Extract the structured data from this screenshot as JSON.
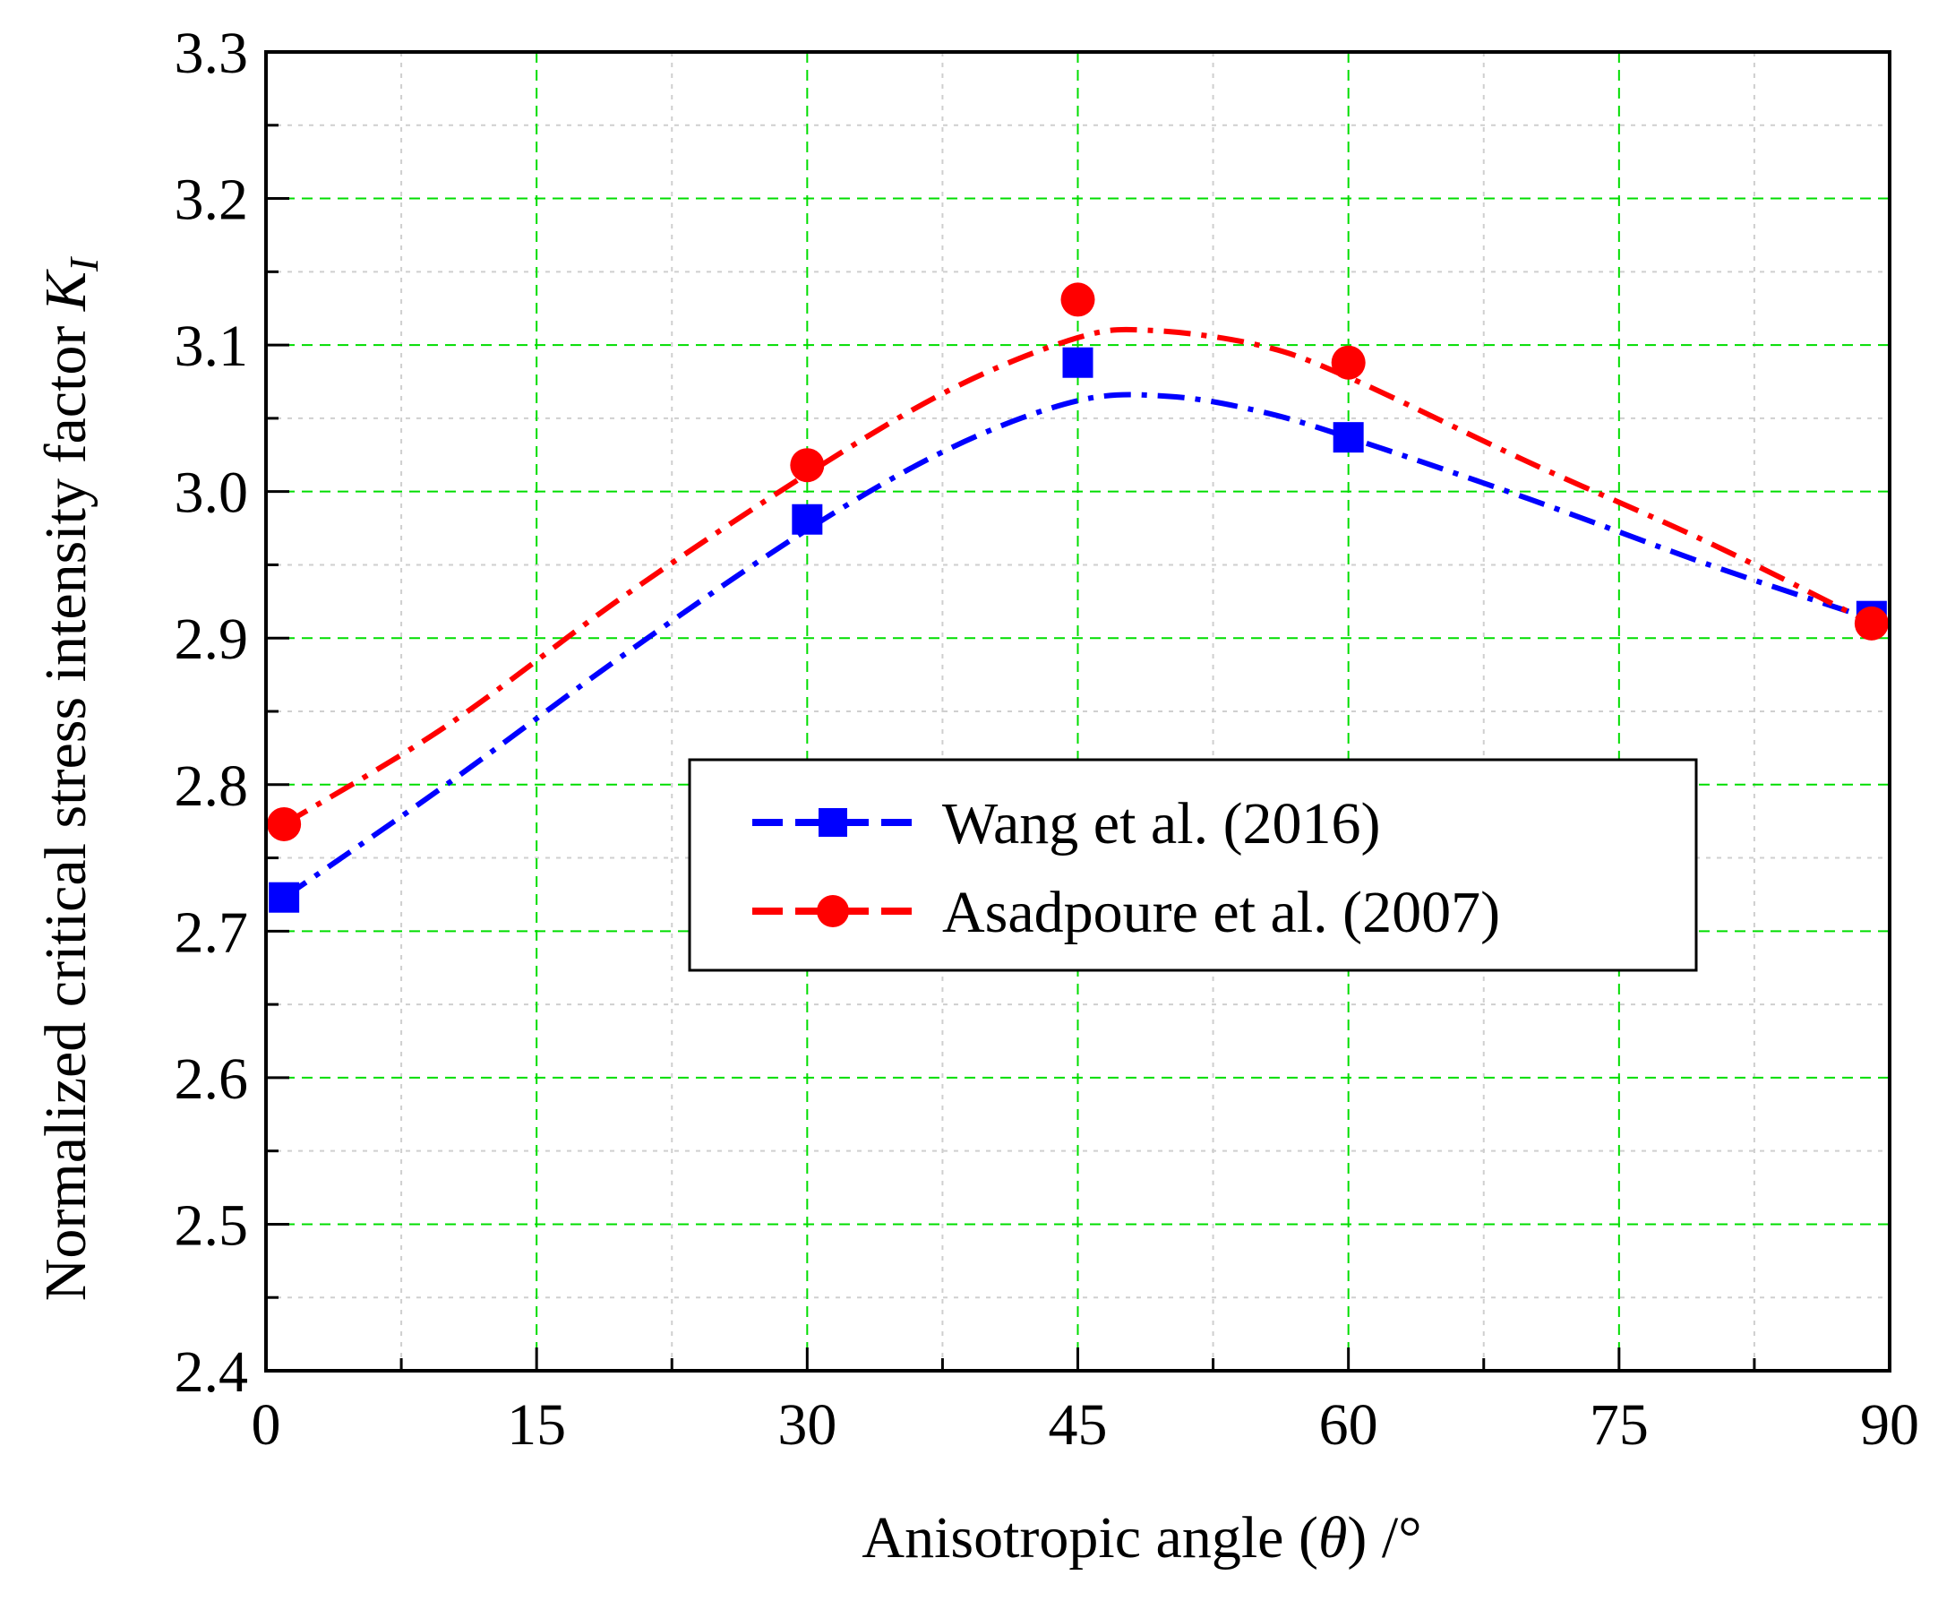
{
  "chart_data": {
    "type": "line",
    "title": "",
    "xlabel": "Anisotropic angle (θ) /°",
    "xlabel_parts": {
      "pre": "Anisotropic angle (",
      "theta": "θ",
      "post": ") /°"
    },
    "ylabel": "Normalized critical stress intensity factor K_I",
    "ylabel_parts": {
      "main": "Normalized critical stress intensity factor ",
      "k": "K",
      "sub": "I"
    },
    "xlim": [
      0,
      90
    ],
    "ylim": [
      2.4,
      3.3
    ],
    "x_ticks": [
      0,
      15,
      30,
      45,
      60,
      75,
      90
    ],
    "x_tick_labels": [
      "0",
      "15",
      "30",
      "45",
      "60",
      "75",
      "90"
    ],
    "y_ticks": [
      2.4,
      2.5,
      2.6,
      2.7,
      2.8,
      2.9,
      3.0,
      3.1,
      3.2,
      3.3
    ],
    "y_tick_labels": [
      "2.4",
      "2.5",
      "2.6",
      "2.7",
      "2.8",
      "2.9",
      "3.0",
      "3.1",
      "3.2",
      "3.3"
    ],
    "grid": true,
    "grid_color": "#00dd00",
    "legend_position": "center-right",
    "series": [
      {
        "name": "Wang et al. (2016)",
        "color": "#0000ff",
        "marker": "square",
        "x": [
          1,
          30,
          45,
          60,
          89
        ],
        "y": [
          2.723,
          2.981,
          3.088,
          3.037,
          2.915
        ],
        "curve": [
          [
            1,
            2.723
          ],
          [
            10,
            2.8
          ],
          [
            20,
            2.89
          ],
          [
            30,
            2.974
          ],
          [
            38,
            3.03
          ],
          [
            45,
            3.062
          ],
          [
            50,
            3.065
          ],
          [
            55,
            3.055
          ],
          [
            60,
            3.037
          ],
          [
            70,
            2.995
          ],
          [
            80,
            2.95
          ],
          [
            89,
            2.913
          ]
        ]
      },
      {
        "name": "Asadpoure et al. (2007)",
        "color": "#ff0000",
        "marker": "circle",
        "x": [
          1,
          30,
          45,
          60,
          89
        ],
        "y": [
          2.773,
          3.018,
          3.131,
          3.088,
          2.91
        ],
        "curve": [
          [
            1,
            2.773
          ],
          [
            10,
            2.84
          ],
          [
            20,
            2.93
          ],
          [
            30,
            3.012
          ],
          [
            38,
            3.07
          ],
          [
            45,
            3.105
          ],
          [
            49,
            3.11
          ],
          [
            55,
            3.1
          ],
          [
            60,
            3.078
          ],
          [
            70,
            3.02
          ],
          [
            80,
            2.965
          ],
          [
            89,
            2.91
          ]
        ]
      }
    ]
  }
}
